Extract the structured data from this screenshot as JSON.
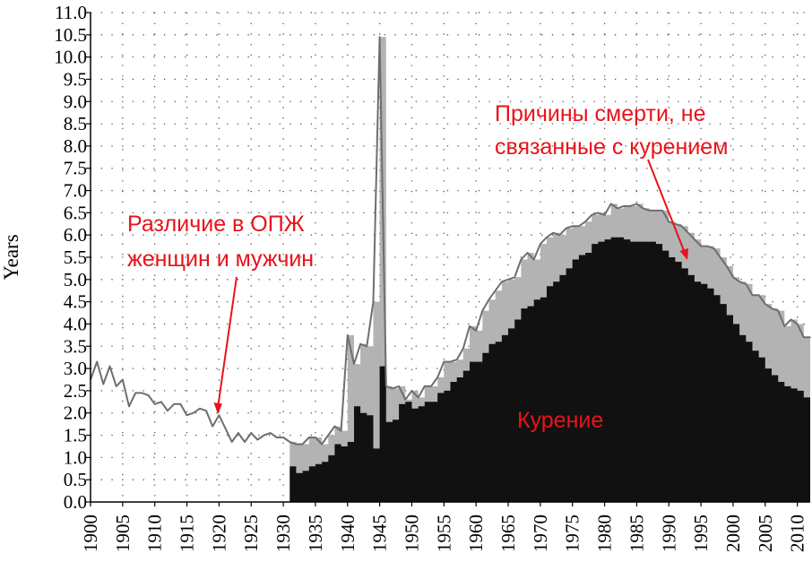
{
  "chart_data": {
    "type": "area",
    "ylabel": "Years",
    "xlabel": "",
    "xlim": [
      1900,
      2012
    ],
    "ylim": [
      0,
      11
    ],
    "grid": true,
    "y_ticks": [
      "0.0",
      "0.5",
      "1.0",
      "1.5",
      "2.0",
      "2.5",
      "3.0",
      "3.5",
      "4.0",
      "4.5",
      "5.0",
      "5.5",
      "6.0",
      "6.5",
      "7.0",
      "7.5",
      "8.0",
      "8.5",
      "9.0",
      "9.5",
      "10.0",
      "10.5",
      "11.0"
    ],
    "x_ticks": [
      "1900",
      "1905",
      "1910",
      "1915",
      "1920",
      "1925",
      "1930",
      "1935",
      "1940",
      "1945",
      "1950",
      "1955",
      "1960",
      "1965",
      "1970",
      "1975",
      "1980",
      "1985",
      "1990",
      "1995",
      "2000",
      "2005",
      "2010"
    ],
    "x": [
      1900,
      1901,
      1902,
      1903,
      1904,
      1905,
      1906,
      1907,
      1908,
      1909,
      1910,
      1911,
      1912,
      1913,
      1914,
      1915,
      1916,
      1917,
      1918,
      1919,
      1920,
      1921,
      1922,
      1923,
      1924,
      1925,
      1926,
      1927,
      1928,
      1929,
      1930,
      1931,
      1932,
      1933,
      1934,
      1935,
      1936,
      1937,
      1938,
      1939,
      1940,
      1941,
      1942,
      1943,
      1944,
      1945,
      1946,
      1947,
      1948,
      1949,
      1950,
      1951,
      1952,
      1953,
      1954,
      1955,
      1956,
      1957,
      1958,
      1959,
      1960,
      1961,
      1962,
      1963,
      1964,
      1965,
      1966,
      1967,
      1968,
      1969,
      1970,
      1971,
      1972,
      1973,
      1974,
      1975,
      1976,
      1977,
      1978,
      1979,
      1980,
      1981,
      1982,
      1983,
      1984,
      1985,
      1986,
      1987,
      1988,
      1989,
      1990,
      1991,
      1992,
      1993,
      1994,
      1995,
      1996,
      1997,
      1998,
      1999,
      2000,
      2001,
      2002,
      2003,
      2004,
      2005,
      2006,
      2007,
      2008,
      2009,
      2010,
      2011,
      2012
    ],
    "series": [
      {
        "name": "Различие в ОПЖ женщин и мужчин",
        "color": "#b3b3b3",
        "line_color": "#6e6e6e",
        "values": [
          2.75,
          3.15,
          2.65,
          3.05,
          2.6,
          2.75,
          2.15,
          2.45,
          2.45,
          2.4,
          2.2,
          2.25,
          2.05,
          2.2,
          2.2,
          1.95,
          2.0,
          2.1,
          2.05,
          1.7,
          1.95,
          1.65,
          1.35,
          1.55,
          1.35,
          1.55,
          1.4,
          1.5,
          1.55,
          1.45,
          1.45,
          1.35,
          1.3,
          1.3,
          1.45,
          1.45,
          1.3,
          1.5,
          1.7,
          1.6,
          3.75,
          3.1,
          3.55,
          3.5,
          4.5,
          10.45,
          2.6,
          2.55,
          2.6,
          2.3,
          2.5,
          2.35,
          2.6,
          2.6,
          2.8,
          3.15,
          3.15,
          3.2,
          3.45,
          3.95,
          3.85,
          4.3,
          4.55,
          4.75,
          4.95,
          5.0,
          5.05,
          5.45,
          5.6,
          5.45,
          5.8,
          5.95,
          6.05,
          6.0,
          6.15,
          6.2,
          6.2,
          6.3,
          6.45,
          6.5,
          6.45,
          6.7,
          6.6,
          6.65,
          6.65,
          6.7,
          6.6,
          6.55,
          6.55,
          6.55,
          6.3,
          6.25,
          6.2,
          6.05,
          5.9,
          5.75,
          5.75,
          5.7,
          5.5,
          5.3,
          5.05,
          4.95,
          4.9,
          4.65,
          4.65,
          4.45,
          4.35,
          4.3,
          3.95,
          4.1,
          4.0,
          3.7,
          3.7
        ]
      },
      {
        "name": "Курение",
        "color": "#111111",
        "values": [
          0,
          0,
          0,
          0,
          0,
          0,
          0,
          0,
          0,
          0,
          0,
          0,
          0,
          0,
          0,
          0,
          0,
          0,
          0,
          0,
          0,
          0,
          0,
          0,
          0,
          0,
          0,
          0,
          0,
          0,
          0,
          0.8,
          0.65,
          0.7,
          0.8,
          0.85,
          0.9,
          1.05,
          1.3,
          1.25,
          1.35,
          2.15,
          2.0,
          1.95,
          1.2,
          3.05,
          1.8,
          1.85,
          2.2,
          2.25,
          2.1,
          2.15,
          2.25,
          2.25,
          2.45,
          2.5,
          2.7,
          2.8,
          2.95,
          3.15,
          3.15,
          3.35,
          3.55,
          3.6,
          3.75,
          3.9,
          4.1,
          4.35,
          4.4,
          4.55,
          4.6,
          4.85,
          4.95,
          5.1,
          5.25,
          5.45,
          5.55,
          5.6,
          5.8,
          5.85,
          5.9,
          5.95,
          5.95,
          5.9,
          5.85,
          5.85,
          5.85,
          5.85,
          5.8,
          5.65,
          5.5,
          5.4,
          5.25,
          5.1,
          4.95,
          4.9,
          4.8,
          4.65,
          4.45,
          4.2,
          4.0,
          3.75,
          3.6,
          3.4,
          3.25,
          3.0,
          2.85,
          2.7,
          2.6,
          2.55,
          2.5,
          2.35,
          2.15
        ]
      }
    ],
    "annotations": [
      {
        "text_lines": [
          "Различие в ОПЖ",
          "женщин и мужчин"
        ]
      },
      {
        "text_lines": [
          "Причины смерти, не",
          "связанные с курением"
        ]
      },
      {
        "text_lines": [
          "Курение"
        ]
      }
    ]
  }
}
